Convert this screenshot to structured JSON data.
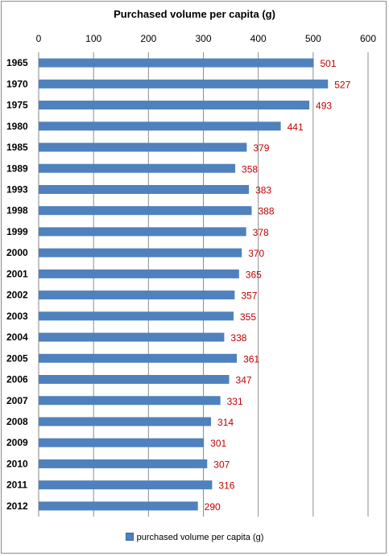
{
  "chart_data": {
    "type": "bar",
    "orientation": "horizontal",
    "title": "Purchased volume per capita (g)",
    "categories": [
      "1965",
      "1970",
      "1975",
      "1980",
      "1985",
      "1989",
      "1993",
      "1998",
      "1999",
      "2000",
      "2001",
      "2002",
      "2003",
      "2004",
      "2005",
      "2006",
      "2007",
      "2008",
      "2009",
      "2010",
      "2011",
      "2012"
    ],
    "series": [
      {
        "name": "purchased volume per capita (g)",
        "values": [
          501,
          527,
          493,
          441,
          379,
          358,
          383,
          388,
          378,
          370,
          365,
          357,
          355,
          338,
          361,
          347,
          331,
          314,
          301,
          307,
          316,
          290
        ],
        "color": "#4f81bd"
      }
    ],
    "xlim": [
      0,
      600
    ],
    "xticks": [
      0,
      100,
      200,
      300,
      400,
      500,
      600
    ],
    "x_axis_position": "top",
    "data_label_color": "#c00000",
    "grid": true,
    "legend_position": "bottom"
  }
}
